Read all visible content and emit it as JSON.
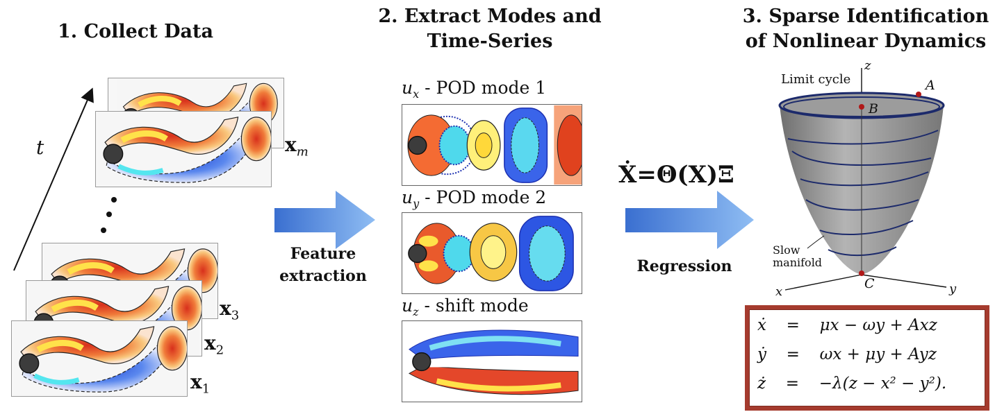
{
  "step1": {
    "title": "1.  Collect Data",
    "time_label": "t",
    "snapshot_labels": [
      {
        "base": "x",
        "sub": "m"
      },
      {
        "base": "x",
        "sub": "3"
      },
      {
        "base": "x",
        "sub": "2"
      },
      {
        "base": "x",
        "sub": "1"
      }
    ]
  },
  "arrow1": {
    "label_line1": "Feature",
    "label_line2": "extraction"
  },
  "step2": {
    "title_line1": "2.  Extract Modes and",
    "title_line2": "Time-Series",
    "modes": [
      {
        "var": "u",
        "sub": "x",
        "desc": " - POD mode 1"
      },
      {
        "var": "u",
        "sub": "y",
        "desc": " - POD mode 2"
      },
      {
        "var": "u",
        "sub": "z",
        "desc": " - shift mode"
      }
    ]
  },
  "arrow2": {
    "equation_lhs": "Ẋ",
    "equation_eq": "=",
    "equation_rhs": "Θ(X)Ξ",
    "label": "Regression"
  },
  "step3": {
    "title_line1": "3. Sparse Identification",
    "title_line2": "of Nonlinear Dynamics",
    "plot_labels": {
      "z_axis": "z",
      "x_axis": "x",
      "y_axis": "y",
      "limit_cycle": "Limit cycle",
      "point_a": "A",
      "point_b": "B",
      "point_c": "C",
      "slow_line1": "Slow",
      "slow_line2": "manifold"
    },
    "equations": [
      {
        "lhs": "ẋ",
        "eq": "=",
        "rhs": "μx − ωy + Axz"
      },
      {
        "lhs": "ẏ",
        "eq": "=",
        "rhs": "ωx + μy + Ayz"
      },
      {
        "lhs": "ż",
        "eq": "=",
        "rhs": "−λ(z − x² − y²)."
      }
    ]
  },
  "colors": {
    "arrow_dark": "#3a6fd0",
    "arrow_light": "#7fb2f0",
    "equation_border": "#a53b2e",
    "cone_fill": "#8e8e8e",
    "orbit": "#1c2a6b",
    "point": "#b01818"
  }
}
